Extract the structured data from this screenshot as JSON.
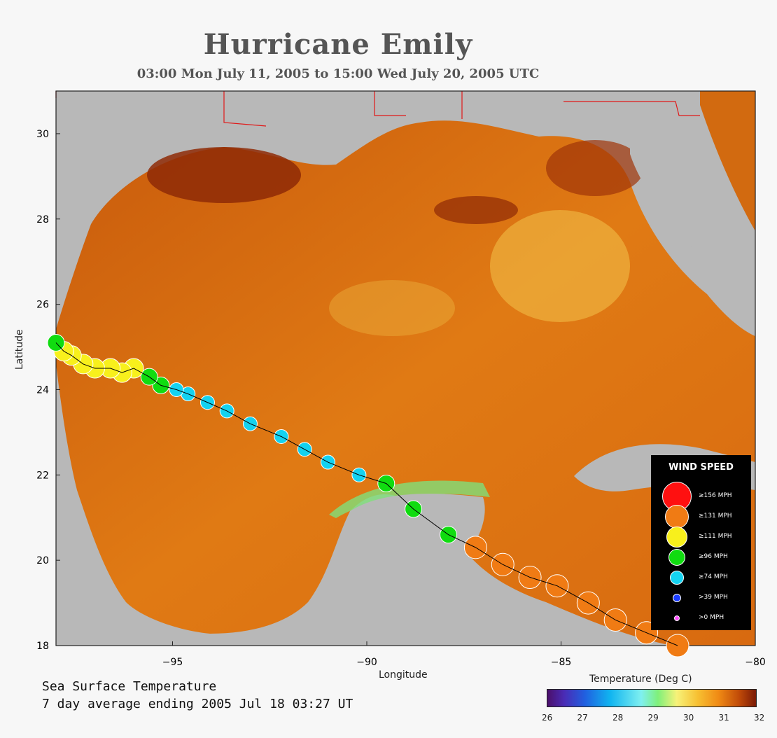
{
  "title": "Hurricane Emily",
  "subtitle": "03:00 Mon July 11, 2005 to 15:00 Wed July 20, 2005  UTC",
  "map": {
    "xlabel": "Longitude",
    "ylabel": "Latitude",
    "lon_range": [
      -98,
      -80
    ],
    "lat_range": [
      18,
      31
    ],
    "lon_ticks": [
      "−95",
      "−90",
      "−85",
      "−80"
    ],
    "lat_ticks": [
      "18",
      "20",
      "22",
      "24",
      "26",
      "28",
      "30"
    ]
  },
  "note_line1": "Sea Surface Temperature",
  "note_line2": "7 day average ending 2005 Jul 18 03:27 UT",
  "legend": {
    "title": "WIND SPEED",
    "items": [
      {
        "label": "≥156 MPH",
        "color": "#ff1010"
      },
      {
        "label": "≥131 MPH",
        "color": "#f07b14"
      },
      {
        "label": "≥111 MPH",
        "color": "#f8f01c"
      },
      {
        "label": "≥96 MPH",
        "color": "#10dc10"
      },
      {
        "label": "≥74 MPH",
        "color": "#14d2f0"
      },
      {
        "label": ">39 MPH",
        "color": "#1a3cff"
      },
      {
        "label": ">0 MPH",
        "color": "#ff50ff"
      }
    ]
  },
  "colorbar": {
    "title": "Temperature (Deg C)",
    "ticks": [
      "26",
      "27",
      "28",
      "29",
      "30",
      "31",
      "32"
    ]
  },
  "track": [
    {
      "lon": -82.0,
      "lat": 18.0,
      "cat": "≥131 MPH"
    },
    {
      "lon": -82.8,
      "lat": 18.3,
      "cat": "≥131 MPH"
    },
    {
      "lon": -83.6,
      "lat": 18.6,
      "cat": "≥131 MPH"
    },
    {
      "lon": -84.3,
      "lat": 19.0,
      "cat": "≥131 MPH"
    },
    {
      "lon": -85.1,
      "lat": 19.4,
      "cat": "≥131 MPH"
    },
    {
      "lon": -85.8,
      "lat": 19.6,
      "cat": "≥131 MPH"
    },
    {
      "lon": -86.5,
      "lat": 19.9,
      "cat": "≥131 MPH"
    },
    {
      "lon": -87.2,
      "lat": 20.3,
      "cat": "≥131 MPH"
    },
    {
      "lon": -87.9,
      "lat": 20.6,
      "cat": "≥96 MPH"
    },
    {
      "lon": -88.8,
      "lat": 21.2,
      "cat": "≥96 MPH"
    },
    {
      "lon": -89.5,
      "lat": 21.8,
      "cat": "≥96 MPH"
    },
    {
      "lon": -90.2,
      "lat": 22.0,
      "cat": "≥74 MPH"
    },
    {
      "lon": -91.0,
      "lat": 22.3,
      "cat": "≥74 MPH"
    },
    {
      "lon": -91.6,
      "lat": 22.6,
      "cat": "≥74 MPH"
    },
    {
      "lon": -92.2,
      "lat": 22.9,
      "cat": "≥74 MPH"
    },
    {
      "lon": -93.0,
      "lat": 23.2,
      "cat": "≥74 MPH"
    },
    {
      "lon": -93.6,
      "lat": 23.5,
      "cat": "≥74 MPH"
    },
    {
      "lon": -94.1,
      "lat": 23.7,
      "cat": "≥74 MPH"
    },
    {
      "lon": -94.6,
      "lat": 23.9,
      "cat": "≥74 MPH"
    },
    {
      "lon": -94.9,
      "lat": 24.0,
      "cat": "≥74 MPH"
    },
    {
      "lon": -95.3,
      "lat": 24.1,
      "cat": "≥96 MPH"
    },
    {
      "lon": -95.6,
      "lat": 24.3,
      "cat": "≥96 MPH"
    },
    {
      "lon": -96.0,
      "lat": 24.5,
      "cat": "≥111 MPH"
    },
    {
      "lon": -96.3,
      "lat": 24.4,
      "cat": "≥111 MPH"
    },
    {
      "lon": -96.6,
      "lat": 24.5,
      "cat": "≥111 MPH"
    },
    {
      "lon": -97.0,
      "lat": 24.5,
      "cat": "≥111 MPH"
    },
    {
      "lon": -97.3,
      "lat": 24.6,
      "cat": "≥111 MPH"
    },
    {
      "lon": -97.6,
      "lat": 24.8,
      "cat": "≥111 MPH"
    },
    {
      "lon": -97.8,
      "lat": 24.9,
      "cat": "≥111 MPH"
    },
    {
      "lon": -98.0,
      "lat": 25.1,
      "cat": "≥96 MPH"
    }
  ]
}
